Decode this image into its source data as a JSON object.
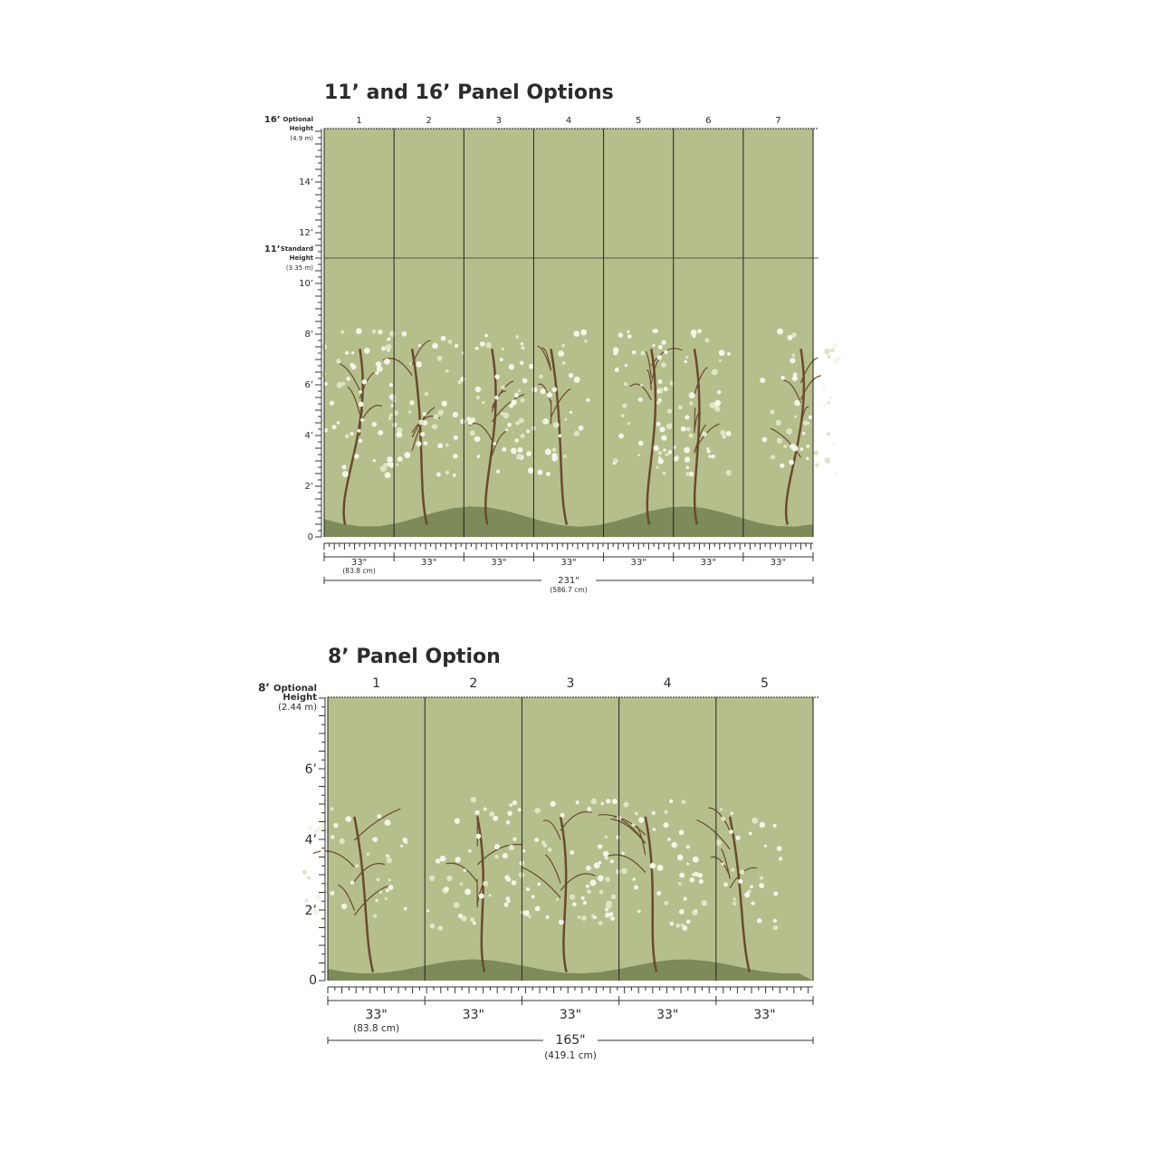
{
  "sections": [
    {
      "title": "11’ and 16’ Panel Options",
      "panels": [
        "1",
        "2",
        "3",
        "4",
        "5",
        "6",
        "7"
      ],
      "markers": [
        {
          "label": "16’",
          "note": [
            "Optional",
            "Height"
          ],
          "metric": "(4.9 m)"
        },
        {
          "label": "11’",
          "note": [
            "Standard",
            "Height"
          ],
          "metric": "(3.35 m)"
        }
      ],
      "ticks": [
        "14’",
        "12’",
        "10’",
        "8’",
        "6’",
        "4’",
        "2’",
        "0"
      ],
      "panel_widths": [
        "33\"",
        "33\"",
        "33\"",
        "33\"",
        "33\"",
        "33\"",
        "33\""
      ],
      "panel_width_metric": "(83.8 cm)",
      "total": "231\"",
      "total_metric": "(586.7 cm)"
    },
    {
      "title": "8’ Panel Option",
      "panels": [
        "1",
        "2",
        "3",
        "4",
        "5"
      ],
      "markers": [
        {
          "label": "8’",
          "note": [
            "Optional",
            "Height"
          ],
          "metric": "(2.44 m)"
        }
      ],
      "ticks": [
        "6’",
        "4’",
        "2’",
        "0"
      ],
      "panel_widths": [
        "33\"",
        "33\"",
        "33\"",
        "33\"",
        "33\""
      ],
      "panel_width_metric": "(83.8 cm)",
      "total": "165\"",
      "total_metric": "(419.1 cm)"
    }
  ]
}
